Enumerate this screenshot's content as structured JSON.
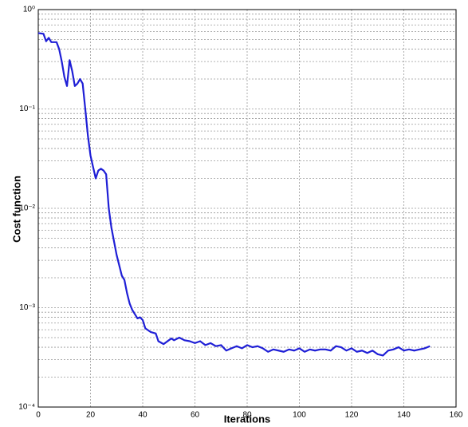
{
  "chart_data": {
    "type": "line",
    "xlabel": "Iterations",
    "ylabel": "Cost function",
    "log_y": true,
    "grid": true,
    "xlim": [
      0,
      160
    ],
    "xticks": [
      0,
      20,
      40,
      60,
      80,
      100,
      120,
      140,
      160
    ],
    "ylim": [
      0.0001,
      1
    ],
    "yticks": [
      {
        "value": 0.0001,
        "label": "10⁻⁴"
      },
      {
        "value": 0.001,
        "label": "10⁻³"
      },
      {
        "value": 0.01,
        "label": "10⁻²"
      },
      {
        "value": 0.1,
        "label": "10⁻¹"
      },
      {
        "value": 1,
        "label": "10⁰"
      }
    ],
    "series": [
      {
        "color": "#1f1fd6",
        "x": [
          0,
          2,
          3,
          4,
          5,
          7,
          8,
          9,
          10,
          11,
          12,
          13,
          14,
          15,
          16,
          17,
          18,
          19,
          20,
          21,
          22,
          23,
          24,
          25,
          26,
          27,
          28,
          30,
          32,
          33,
          34,
          35,
          36,
          38,
          39,
          40,
          41,
          43,
          45,
          46,
          48,
          50,
          51,
          52,
          54,
          56,
          58,
          60,
          62,
          64,
          66,
          68,
          70,
          72,
          74,
          76,
          78,
          80,
          82,
          84,
          86,
          88,
          90,
          92,
          94,
          96,
          98,
          100,
          102,
          104,
          106,
          108,
          110,
          112,
          114,
          116,
          118,
          120,
          122,
          124,
          126,
          128,
          130,
          132,
          134,
          136,
          138,
          140,
          142,
          144,
          146,
          148,
          150
        ],
        "values": [
          0.58,
          0.57,
          0.48,
          0.52,
          0.47,
          0.47,
          0.4,
          0.3,
          0.21,
          0.17,
          0.31,
          0.24,
          0.17,
          0.18,
          0.2,
          0.18,
          0.1,
          0.054,
          0.034,
          0.026,
          0.02,
          0.024,
          0.025,
          0.024,
          0.022,
          0.01,
          0.0064,
          0.0034,
          0.0021,
          0.0019,
          0.0014,
          0.0011,
          0.00095,
          0.00078,
          0.0008,
          0.00075,
          0.00062,
          0.00057,
          0.00055,
          0.00046,
          0.00043,
          0.00047,
          0.00049,
          0.00047,
          0.0005,
          0.00047,
          0.00046,
          0.00044,
          0.00046,
          0.00042,
          0.00044,
          0.00041,
          0.00042,
          0.00037,
          0.00039,
          0.00041,
          0.00039,
          0.00042,
          0.0004,
          0.00041,
          0.00039,
          0.00036,
          0.00038,
          0.00037,
          0.00036,
          0.00038,
          0.00037,
          0.00039,
          0.00036,
          0.00038,
          0.00037,
          0.00038,
          0.00038,
          0.00037,
          0.00041,
          0.0004,
          0.00037,
          0.00039,
          0.00036,
          0.00037,
          0.00035,
          0.00037,
          0.00034,
          0.00033,
          0.00037,
          0.00038,
          0.0004,
          0.00037,
          0.00038,
          0.00037,
          0.00038,
          0.00039,
          0.00041
        ]
      }
    ]
  }
}
